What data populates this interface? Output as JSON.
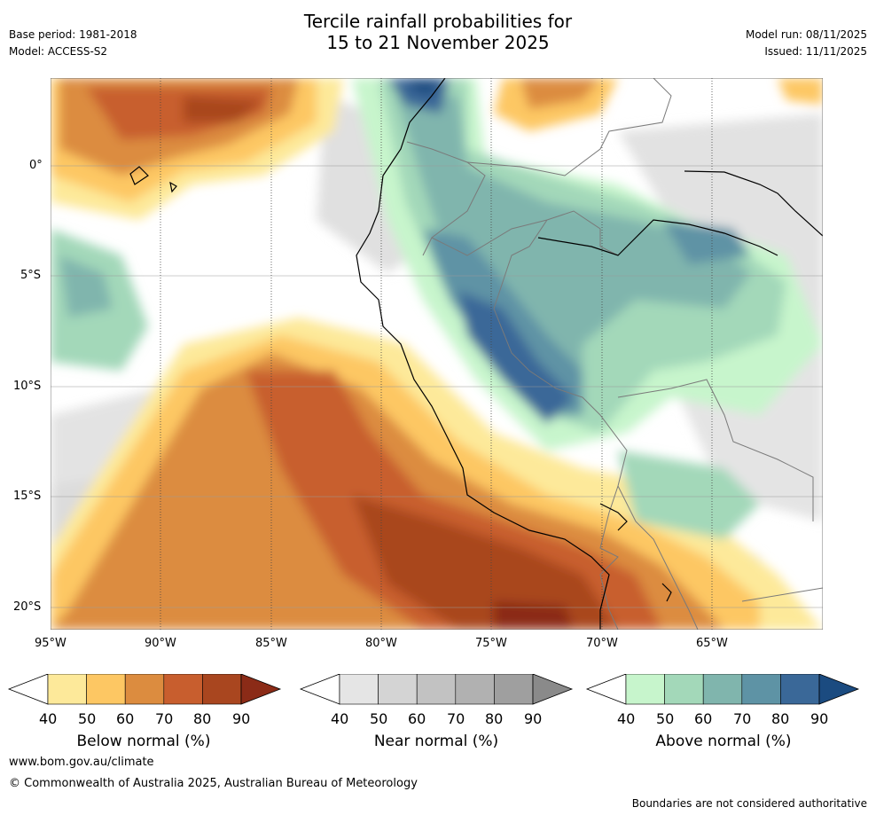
{
  "title": {
    "line1": "Tercile rainfall probabilities for",
    "line2": "15 to 21 November 2025"
  },
  "meta": {
    "base_period": "Base period: 1981-2018",
    "model": "Model: ACCESS-S2",
    "model_run": "Model run: 08/11/2025",
    "issued": "Issued: 11/11/2025"
  },
  "axes": {
    "lat_labels": [
      "0°",
      "5°S",
      "10°S",
      "15°S",
      "20°S"
    ],
    "lon_labels": [
      "95°W",
      "90°W",
      "85°W",
      "80°W",
      "75°W",
      "70°W",
      "65°W"
    ]
  },
  "legends": [
    {
      "title": "Below normal (%)",
      "ticks": [
        "40",
        "50",
        "60",
        "70",
        "80",
        "90"
      ],
      "colors": [
        "#ffffff",
        "#fde99a",
        "#fdc763",
        "#dc8c3f",
        "#c85e2e",
        "#a9461f",
        "#8b2b17"
      ]
    },
    {
      "title": "Near normal (%)",
      "ticks": [
        "40",
        "50",
        "60",
        "70",
        "80",
        "90"
      ],
      "colors": [
        "#ffffff",
        "#e5e5e5",
        "#d4d4d4",
        "#c2c2c2",
        "#b1b1b1",
        "#9f9f9f",
        "#8a8a8a"
      ]
    },
    {
      "title": "Above normal (%)",
      "ticks": [
        "40",
        "50",
        "60",
        "70",
        "80",
        "90"
      ],
      "colors": [
        "#ffffff",
        "#c7f5cc",
        "#a3d8b9",
        "#80b5ad",
        "#5e93a5",
        "#3a6898",
        "#1b4b80"
      ]
    }
  ],
  "footer": {
    "url": "www.bom.gov.au/climate",
    "copyright": "© Commonwealth of Australia 2025, Australian Bureau of Meteorology",
    "disclaimer": "Boundaries are not considered authoritative"
  }
}
